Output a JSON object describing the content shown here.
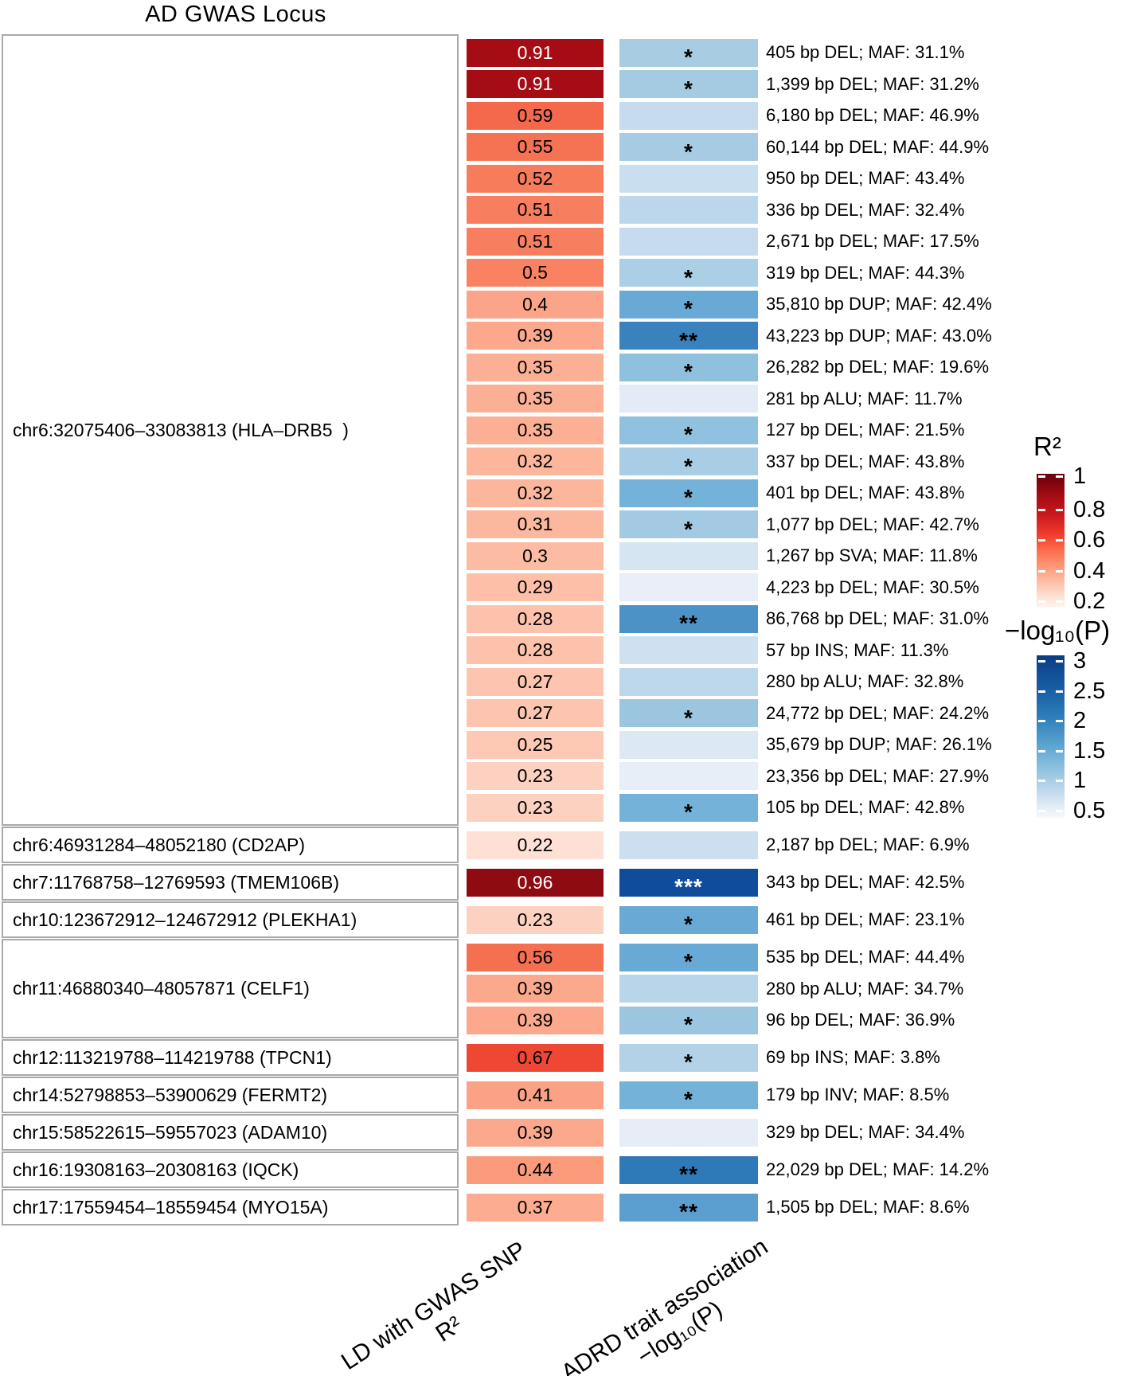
{
  "chart_data": {
    "type": "heatmap",
    "title": "AD GWAS Locus",
    "columns": {
      "r2_axis_line1": "LD with GWAS SNP",
      "r2_axis_line2": "R²",
      "assoc_axis_line1": "ADRD trait association",
      "assoc_axis_line2": "−log₁₀(P)"
    },
    "legend_r2": {
      "title": "R²",
      "ticks": [
        "1",
        "0.8",
        "0.6",
        "0.4",
        "0.2"
      ]
    },
    "legend_p": {
      "title": "−log₁₀(P)",
      "ticks": [
        "3",
        "2.5",
        "2",
        "1.5",
        "1",
        "0.5"
      ]
    },
    "groups": [
      {
        "label": "chr6:32075406–33083813 (HLA–DRB5  )",
        "rows": [
          {
            "value": "0.91",
            "cell_color": "#a60c14",
            "value_color": "#ffffff",
            "stars": "*",
            "star_color": "#000000",
            "sig_color": "#a8cce2",
            "annotation": "405 bp DEL; MAF: 31.1%"
          },
          {
            "value": "0.91",
            "cell_color": "#a60c14",
            "value_color": "#ffffff",
            "stars": "*",
            "star_color": "#000000",
            "sig_color": "#a4cbe1",
            "annotation": "1,399 bp DEL; MAF: 31.2%"
          },
          {
            "value": "0.59",
            "cell_color": "#f4694c",
            "value_color": "#000000",
            "stars": "",
            "star_color": "#000000",
            "sig_color": "#c6dcee",
            "annotation": "6,180 bp DEL; MAF: 46.9%"
          },
          {
            "value": "0.55",
            "cell_color": "#f57353",
            "value_color": "#000000",
            "stars": "*",
            "star_color": "#000000",
            "sig_color": "#a6cbe3",
            "annotation": "60,144 bp DEL; MAF: 44.9%"
          },
          {
            "value": "0.52",
            "cell_color": "#f67c5c",
            "value_color": "#000000",
            "stars": "",
            "star_color": "#000000",
            "sig_color": "#c9deef",
            "annotation": "950 bp DEL; MAF: 43.4%"
          },
          {
            "value": "0.51",
            "cell_color": "#f77f5f",
            "value_color": "#000000",
            "stars": "",
            "star_color": "#000000",
            "sig_color": "#bcd7ec",
            "annotation": "336 bp DEL; MAF: 32.4%"
          },
          {
            "value": "0.51",
            "cell_color": "#f77f5f",
            "value_color": "#000000",
            "stars": "",
            "star_color": "#000000",
            "sig_color": "#c6dcee",
            "annotation": "2,671 bp DEL; MAF: 17.5%"
          },
          {
            "value": "0.5",
            "cell_color": "#f88262",
            "value_color": "#000000",
            "stars": "*",
            "star_color": "#000000",
            "sig_color": "#abcfe5",
            "annotation": "319 bp DEL; MAF: 44.3%"
          },
          {
            "value": "0.4",
            "cell_color": "#fba489",
            "value_color": "#000000",
            "stars": "*",
            "star_color": "#000000",
            "sig_color": "#69a9d5",
            "annotation": "35,810 bp DUP; MAF: 42.4%"
          },
          {
            "value": "0.39",
            "cell_color": "#fba88d",
            "value_color": "#000000",
            "stars": "**",
            "star_color": "#000000",
            "sig_color": "#3a82bd",
            "annotation": "43,223 bp DUP; MAF: 43.0%"
          },
          {
            "value": "0.35",
            "cell_color": "#fbb095",
            "value_color": "#000000",
            "stars": "*",
            "star_color": "#000000",
            "sig_color": "#8fc0dd",
            "annotation": "26,282 bp DEL; MAF: 19.6%"
          },
          {
            "value": "0.35",
            "cell_color": "#fbb095",
            "value_color": "#000000",
            "stars": "",
            "star_color": "#000000",
            "sig_color": "#e2ebf6",
            "annotation": "281 bp ALU; MAF: 11.7%"
          },
          {
            "value": "0.35",
            "cell_color": "#fbb095",
            "value_color": "#000000",
            "stars": "*",
            "star_color": "#000000",
            "sig_color": "#90c1de",
            "annotation": "127 bp DEL; MAF: 21.5%"
          },
          {
            "value": "0.32",
            "cell_color": "#fcb69c",
            "value_color": "#000000",
            "stars": "*",
            "star_color": "#000000",
            "sig_color": "#a8cde4",
            "annotation": "337 bp DEL; MAF: 43.8%"
          },
          {
            "value": "0.32",
            "cell_color": "#fcb69c",
            "value_color": "#000000",
            "stars": "*",
            "star_color": "#000000",
            "sig_color": "#74b2d9",
            "annotation": "401 bp DEL; MAF: 43.8%"
          },
          {
            "value": "0.31",
            "cell_color": "#fcb89f",
            "value_color": "#000000",
            "stars": "*",
            "star_color": "#000000",
            "sig_color": "#a3cae2",
            "annotation": "1,077 bp DEL; MAF: 42.7%"
          },
          {
            "value": "0.3",
            "cell_color": "#fcbba3",
            "value_color": "#000000",
            "stars": "",
            "star_color": "#000000",
            "sig_color": "#d6e5f2",
            "annotation": "1,267 bp SVA; MAF: 11.8%"
          },
          {
            "value": "0.29",
            "cell_color": "#fdbfa8",
            "value_color": "#000000",
            "stars": "",
            "star_color": "#000000",
            "sig_color": "#e9eff8",
            "annotation": "4,223 bp DEL; MAF: 30.5%"
          },
          {
            "value": "0.28",
            "cell_color": "#fdc2ab",
            "value_color": "#000000",
            "stars": "**",
            "star_color": "#000000",
            "sig_color": "#4d92c6",
            "annotation": "86,768 bp DEL; MAF: 31.0%"
          },
          {
            "value": "0.28",
            "cell_color": "#fdc2ab",
            "value_color": "#000000",
            "stars": "",
            "star_color": "#000000",
            "sig_color": "#cfe1f0",
            "annotation": "57 bp INS; MAF: 11.3%"
          },
          {
            "value": "0.27",
            "cell_color": "#fdc5af",
            "value_color": "#000000",
            "stars": "",
            "star_color": "#000000",
            "sig_color": "#bdd7eb",
            "annotation": "280 bp ALU; MAF: 32.8%"
          },
          {
            "value": "0.27",
            "cell_color": "#fdc5af",
            "value_color": "#000000",
            "stars": "*",
            "star_color": "#000000",
            "sig_color": "#9cc6e0",
            "annotation": "24,772 bp DEL; MAF: 24.2%"
          },
          {
            "value": "0.25",
            "cell_color": "#fdc9b5",
            "value_color": "#000000",
            "stars": "",
            "star_color": "#000000",
            "sig_color": "#dce8f4",
            "annotation": "35,679 bp DUP; MAF: 26.1%"
          },
          {
            "value": "0.23",
            "cell_color": "#fdd1bf",
            "value_color": "#000000",
            "stars": "",
            "star_color": "#000000",
            "sig_color": "#e7eef7",
            "annotation": "23,356 bp DEL; MAF: 27.9%"
          },
          {
            "value": "0.23",
            "cell_color": "#fdd1bf",
            "value_color": "#000000",
            "stars": "*",
            "star_color": "#000000",
            "sig_color": "#74b2d9",
            "annotation": "105 bp DEL; MAF: 42.8%"
          }
        ]
      },
      {
        "label": "chr6:46931284–48052180 (CD2AP)",
        "rows": [
          {
            "value": "0.22",
            "cell_color": "#fee1d4",
            "value_color": "#000000",
            "stars": "",
            "star_color": "#000000",
            "sig_color": "#cbdff0",
            "annotation": "2,187 bp DEL; MAF: 6.9%"
          }
        ]
      },
      {
        "label": "chr7:11768758–12769593 (TMEM106B)",
        "rows": [
          {
            "value": "0.96",
            "cell_color": "#8e0b12",
            "value_color": "#ffffff",
            "stars": "***",
            "star_color": "#ffffff",
            "sig_color": "#0f4c9c",
            "annotation": "343 bp DEL; MAF: 42.5%"
          }
        ]
      },
      {
        "label": "chr10:123672912–124672912 (PLEKHA1)",
        "rows": [
          {
            "value": "0.23",
            "cell_color": "#fdd1bf",
            "value_color": "#000000",
            "stars": "*",
            "star_color": "#000000",
            "sig_color": "#68a9d5",
            "annotation": "461 bp DEL; MAF: 23.1%"
          }
        ]
      },
      {
        "label": "chr11:46880340–48057871 (CELF1)",
        "rows": [
          {
            "value": "0.56",
            "cell_color": "#f57051",
            "value_color": "#000000",
            "stars": "*",
            "star_color": "#000000",
            "sig_color": "#68a9d5",
            "annotation": "535 bp DEL; MAF: 44.4%"
          },
          {
            "value": "0.39",
            "cell_color": "#fba88d",
            "value_color": "#000000",
            "stars": "",
            "star_color": "#000000",
            "sig_color": "#b9d5ea",
            "annotation": "280 bp ALU; MAF: 34.7%"
          },
          {
            "value": "0.39",
            "cell_color": "#fba88d",
            "value_color": "#000000",
            "stars": "*",
            "star_color": "#000000",
            "sig_color": "#9cc6e0",
            "annotation": "96 bp DEL; MAF: 36.9%"
          }
        ]
      },
      {
        "label": "chr12:113219788–114219788 (TPCN1)",
        "rows": [
          {
            "value": "0.67",
            "cell_color": "#ee4733",
            "value_color": "#000000",
            "stars": "*",
            "star_color": "#000000",
            "sig_color": "#b3d2e8",
            "annotation": "69 bp INS; MAF: 3.8%"
          }
        ]
      },
      {
        "label": "chr14:52798853–53900629 (FERMT2)",
        "rows": [
          {
            "value": "0.41",
            "cell_color": "#fba286",
            "value_color": "#000000",
            "stars": "*",
            "star_color": "#000000",
            "sig_color": "#74b2d9",
            "annotation": "179 bp INV; MAF: 8.5%"
          }
        ]
      },
      {
        "label": "chr15:58522615–59557023 (ADAM10)",
        "rows": [
          {
            "value": "0.39",
            "cell_color": "#fba88d",
            "value_color": "#000000",
            "stars": "",
            "star_color": "#000000",
            "sig_color": "#e6edf7",
            "annotation": "329 bp DEL; MAF: 34.4%"
          }
        ]
      },
      {
        "label": "chr16:19308163–20308163 (IQCK)",
        "rows": [
          {
            "value": "0.44",
            "cell_color": "#fa9b7c",
            "value_color": "#000000",
            "stars": "**",
            "star_color": "#000000",
            "sig_color": "#2e7ab8",
            "annotation": "22,029 bp DEL; MAF: 14.2%"
          }
        ]
      },
      {
        "label": "chr17:17559454–18559454 (MYO15A)",
        "rows": [
          {
            "value": "0.37",
            "cell_color": "#fcac90",
            "value_color": "#000000",
            "stars": "**",
            "star_color": "#000000",
            "sig_color": "#5b9fd0",
            "annotation": "1,505 bp DEL; MAF: 8.6%"
          }
        ]
      }
    ]
  }
}
